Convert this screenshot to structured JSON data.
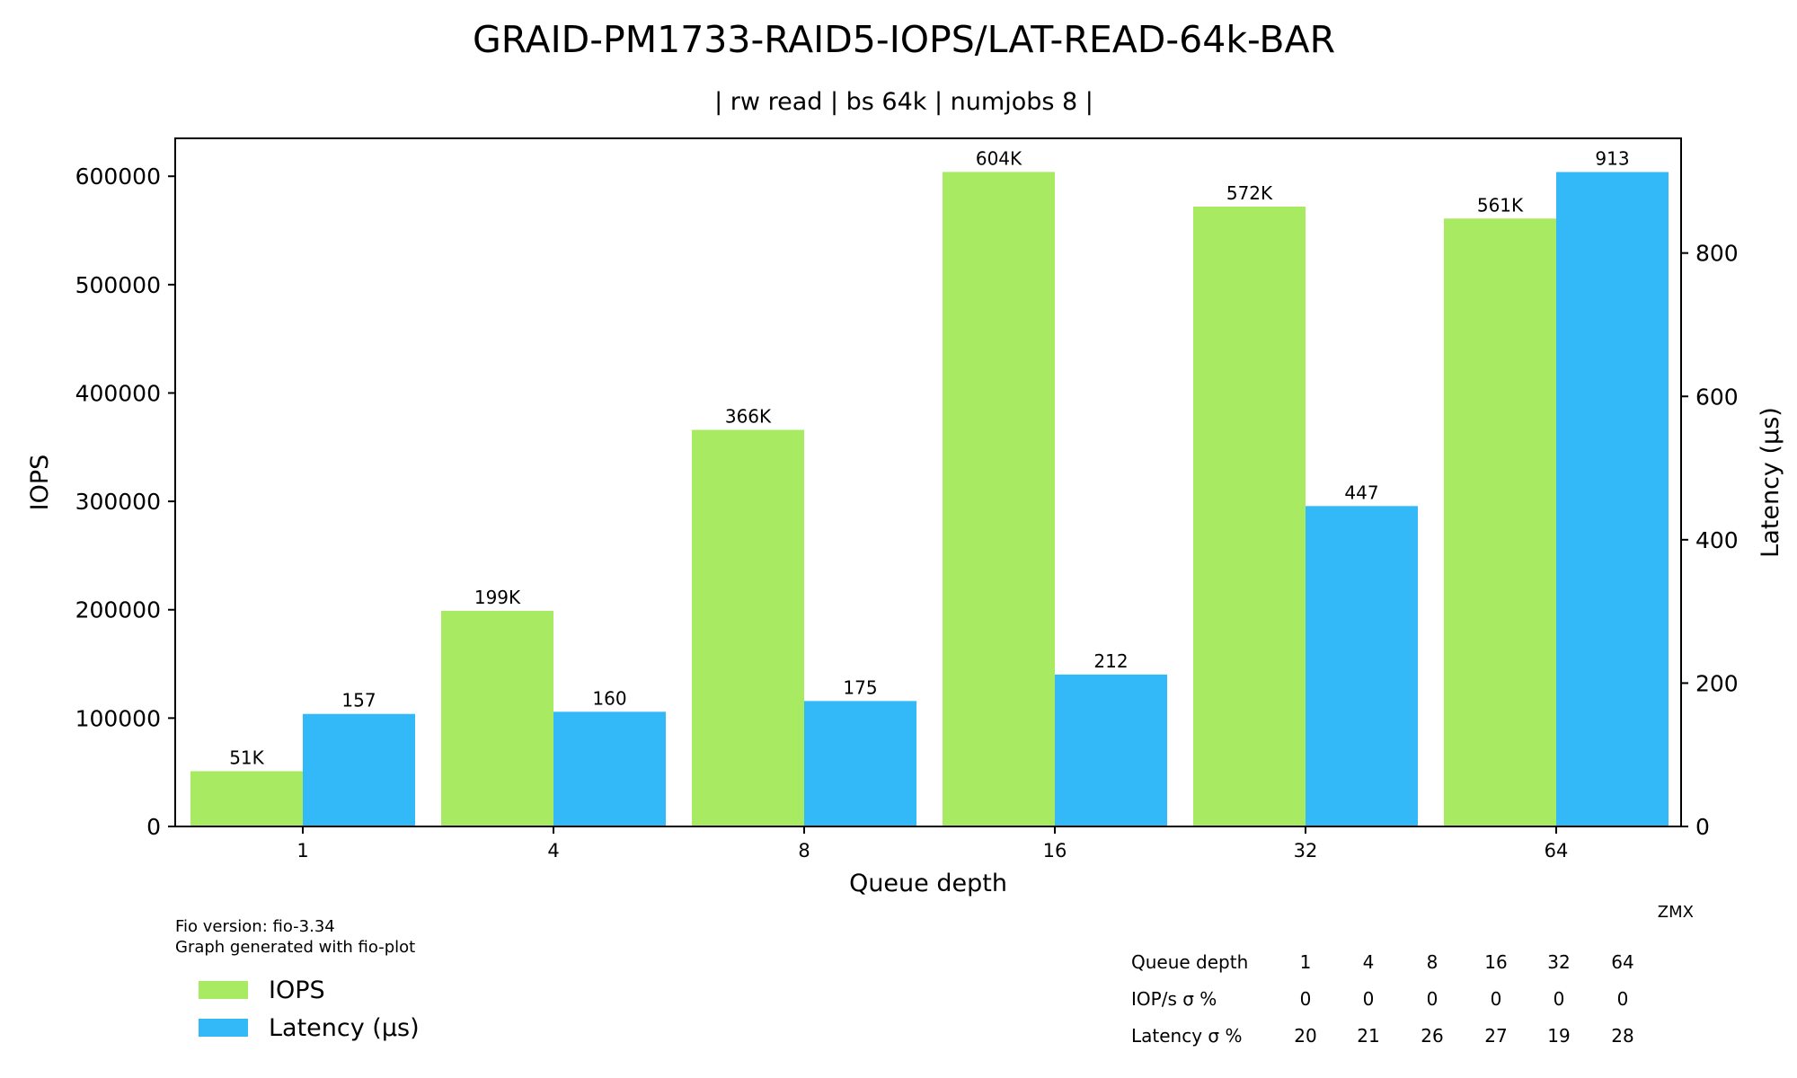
{
  "chart_data": {
    "type": "bar",
    "title": "GRAID-PM1733-RAID5-IOPS/LAT-READ-64k-BAR",
    "subtitle": "| rw read | bs 64k | numjobs 8 |",
    "xlabel": "Queue depth",
    "ylabel_left": "IOPS",
    "ylabel_right": "Latency (µs)",
    "categories": [
      "1",
      "4",
      "8",
      "16",
      "32",
      "64"
    ],
    "ylim_left": [
      0,
      635000
    ],
    "ylim_right": [
      0,
      960
    ],
    "yticks_left": [
      0,
      100000,
      200000,
      300000,
      400000,
      500000,
      600000
    ],
    "yticks_right": [
      0,
      200,
      400,
      600,
      800
    ],
    "series": [
      {
        "name": "IOPS",
        "axis": "left",
        "color": "#a8eb62",
        "values": [
          51000,
          199000,
          366000,
          604000,
          572000,
          561000
        ],
        "labels": [
          "51K",
          "199K",
          "366K",
          "604K",
          "572K",
          "561K"
        ]
      },
      {
        "name": "Latency (µs)",
        "axis": "right",
        "color": "#34b9f8",
        "values": [
          157,
          160,
          175,
          212,
          447,
          913
        ],
        "labels": [
          "157",
          "160",
          "175",
          "212",
          "447",
          "913"
        ]
      }
    ],
    "legend": "bottom-left",
    "grid": false
  },
  "footer": {
    "fio_version": "Fio version: fio-3.34",
    "generated_by": "Graph generated with fio-plot",
    "watermark": "ZMX"
  },
  "stats_table": {
    "rows": [
      {
        "label": "Queue depth",
        "values": [
          "1",
          "4",
          "8",
          "16",
          "32",
          "64"
        ]
      },
      {
        "label": "IOP/s σ %",
        "values": [
          "0",
          "0",
          "0",
          "0",
          "0",
          "0"
        ]
      },
      {
        "label": "Latency σ %",
        "values": [
          "20",
          "21",
          "26",
          "27",
          "19",
          "28"
        ]
      }
    ]
  }
}
